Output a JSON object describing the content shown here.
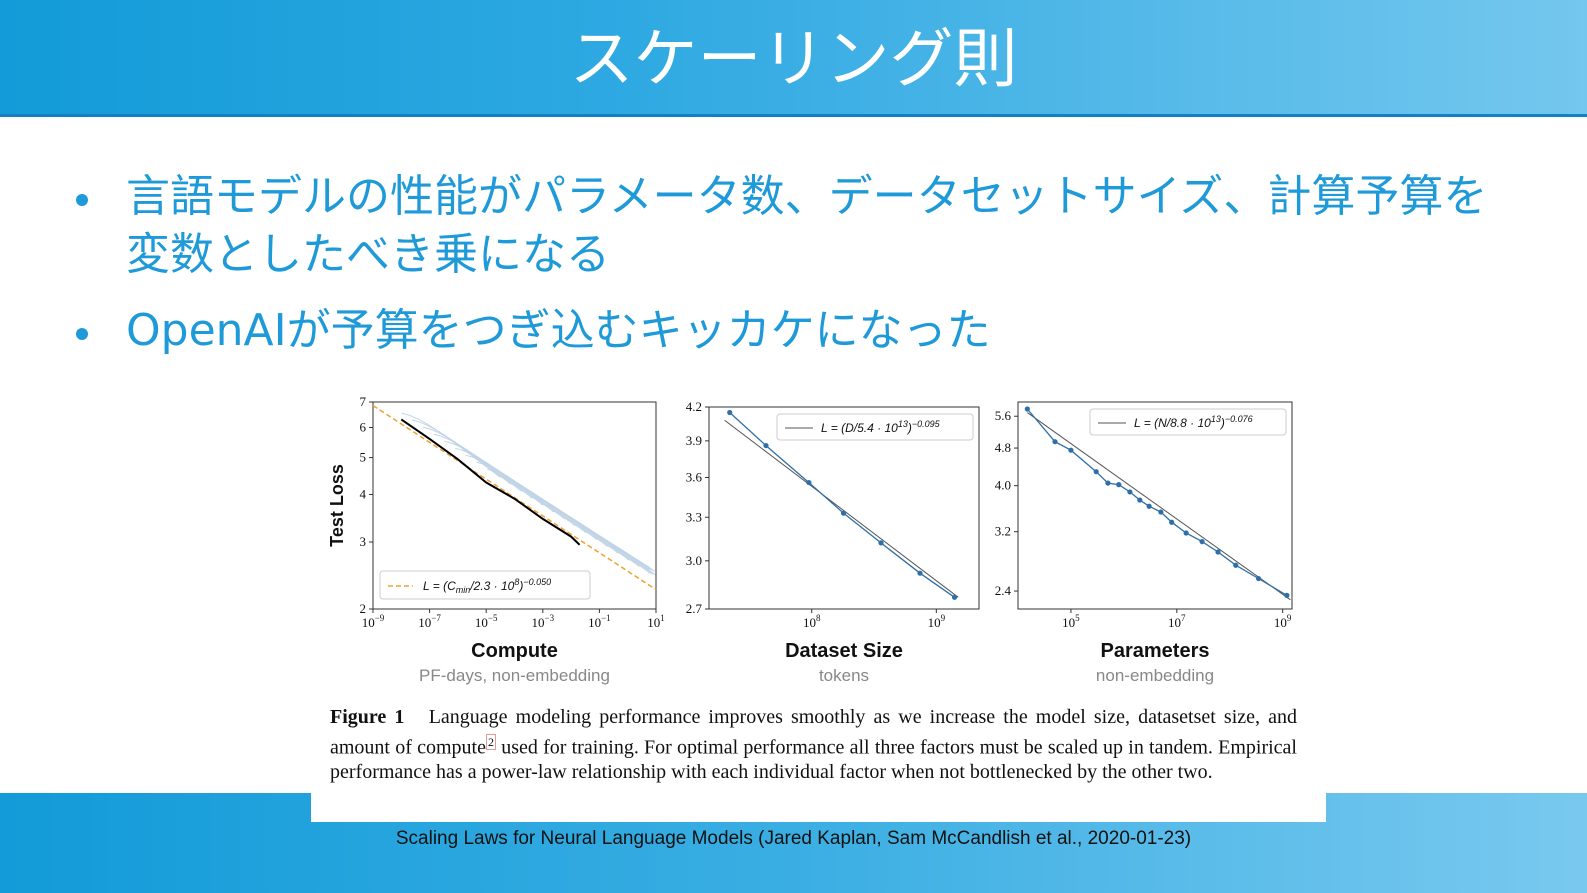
{
  "slide": {
    "title": "スケーリング則",
    "bullets": [
      "言語モデルの性能がパラメータ数、データセットサイズ、計算予算を変数としたべき乗になる",
      "OpenAIが予算をつぎ込むキッカケになった"
    ],
    "citation": "Scaling Laws for Neural Language Models (Jared Kaplan, Sam McCandlish et al., 2020-01-23)"
  },
  "colors": {
    "header": "#1a9fda",
    "bullet_text": "#1f9ad9",
    "fit_orange": "#f0a030",
    "curve_blue": "#8fb2d3",
    "point_blue": "#2f6fa8"
  },
  "figure": {
    "caption_label": "Figure 1",
    "caption_1": "Language modeling performance improves smoothly as we increase the model size, datasetset size, and amount of compute",
    "caption_footnote": "2",
    "caption_2": "used for training. For optimal performance all three factors must be scaled up in tandem. Empirical performance has a power-law relationship with each individual factor when not bottlenecked by the other two."
  },
  "chart_data": [
    {
      "type": "line",
      "xlabel": "Compute",
      "xlabel_sub": "PF-days, non-embedding",
      "ylabel": "Test Loss",
      "x_scale": "log",
      "y_scale": "log",
      "xlim": [
        1e-09,
        10
      ],
      "ylim": [
        2,
        7
      ],
      "x_ticks": [
        {
          "v": 1e-09,
          "b": "10",
          "e": "−9"
        },
        {
          "v": 1e-07,
          "b": "10",
          "e": "−7"
        },
        {
          "v": 1e-05,
          "b": "10",
          "e": "−5"
        },
        {
          "v": 0.001,
          "b": "10",
          "e": "−3"
        },
        {
          "v": 0.1,
          "b": "10",
          "e": "−1"
        },
        {
          "v": 10,
          "b": "10",
          "e": "1"
        }
      ],
      "y_ticks": [
        {
          "v": 2,
          "l": "2"
        },
        {
          "v": 3,
          "l": "3"
        },
        {
          "v": 4,
          "l": "4"
        },
        {
          "v": 5,
          "l": "5"
        },
        {
          "v": 6,
          "l": "6"
        },
        {
          "v": 7,
          "l": "7"
        }
      ],
      "series": [
        {
          "x": [
            1e-08,
            1e-07,
            1e-06,
            1e-05,
            0.0001,
            0.001,
            0.01,
            0.02
          ],
          "y": [
            6.3,
            5.6,
            4.95,
            4.3,
            3.9,
            3.45,
            3.1,
            2.95
          ]
        }
      ],
      "fit": {
        "x": [
          1e-09,
          10
        ],
        "y": [
          6.85,
          2.25
        ]
      },
      "legend": {
        "position": "bottom-left",
        "text": "L = (C_min/2.3 · 10^8)^−0.050",
        "pre": "L = (C",
        "sub": "min",
        "mid": "/2.3 · 10",
        "sup1": "8",
        "post": ")",
        "sup2": "−0.050"
      }
    },
    {
      "type": "line",
      "xlabel": "Dataset Size",
      "xlabel_sub": "tokens",
      "x_scale": "log",
      "y_scale": "log",
      "xlim": [
        15000000.0,
        2200000000.0
      ],
      "ylim": [
        2.7,
        4.2
      ],
      "x_ticks": [
        {
          "v": 100000000.0,
          "b": "10",
          "e": "8"
        },
        {
          "v": 1000000000.0,
          "b": "10",
          "e": "9"
        }
      ],
      "y_ticks": [
        {
          "v": 2.7,
          "l": "2.7"
        },
        {
          "v": 3.0,
          "l": "3.0"
        },
        {
          "v": 3.3,
          "l": "3.3"
        },
        {
          "v": 3.6,
          "l": "3.6"
        },
        {
          "v": 3.9,
          "l": "3.9"
        },
        {
          "v": 4.2,
          "l": "4.2"
        }
      ],
      "points": {
        "x": [
          22000000.0,
          43000000.0,
          95000000.0,
          180000000.0,
          360000000.0,
          740000000.0,
          1400000000.0
        ],
        "y": [
          4.15,
          3.86,
          3.56,
          3.33,
          3.12,
          2.92,
          2.77
        ]
      },
      "fit": {
        "x": [
          20000000.0,
          1500000000.0
        ],
        "y": [
          4.08,
          2.77
        ]
      },
      "legend": {
        "position": "top-right",
        "text": "L = (D/5.4 · 10^13)^−0.095",
        "pre": "L = (D/5.4 · 10",
        "sup1": "13",
        "post": ")",
        "sup2": "−0.095"
      }
    },
    {
      "type": "line",
      "xlabel": "Parameters",
      "xlabel_sub": "non-embedding",
      "x_scale": "log",
      "y_scale": "log",
      "xlim": [
        10000.0,
        1500000000.0
      ],
      "ylim": [
        2.2,
        6
      ],
      "x_ticks": [
        {
          "v": 100000.0,
          "b": "10",
          "e": "5"
        },
        {
          "v": 10000000.0,
          "b": "10",
          "e": "7"
        },
        {
          "v": 1000000000.0,
          "b": "10",
          "e": "9"
        }
      ],
      "y_ticks": [
        {
          "v": 2.4,
          "l": "2.4"
        },
        {
          "v": 3.2,
          "l": "3.2"
        },
        {
          "v": 4.0,
          "l": "4.0"
        },
        {
          "v": 4.8,
          "l": "4.8"
        },
        {
          "v": 5.6,
          "l": "5.6"
        }
      ],
      "points": {
        "x": [
          15000.0,
          50000.0,
          100000.0,
          300000.0,
          500000.0,
          800000.0,
          1300000.0,
          2000000.0,
          3000000.0,
          5000000.0,
          8000000.0,
          15000000.0,
          30000000.0,
          60000000.0,
          130000000.0,
          350000000.0,
          1200000000.0
        ],
        "y": [
          5.8,
          4.95,
          4.75,
          4.28,
          4.05,
          4.02,
          3.88,
          3.73,
          3.62,
          3.52,
          3.35,
          3.18,
          3.05,
          2.9,
          2.72,
          2.55,
          2.35
        ]
      },
      "fit": {
        "x": [
          15000.0,
          1400000000.0
        ],
        "y": [
          5.7,
          2.3
        ]
      },
      "legend": {
        "position": "top-right",
        "text": "L = (N/8.8 · 10^13)^−0.076",
        "pre": "L = (N/8.8 · 10",
        "sup1": "13",
        "post": ")",
        "sup2": "−0.076"
      }
    }
  ]
}
